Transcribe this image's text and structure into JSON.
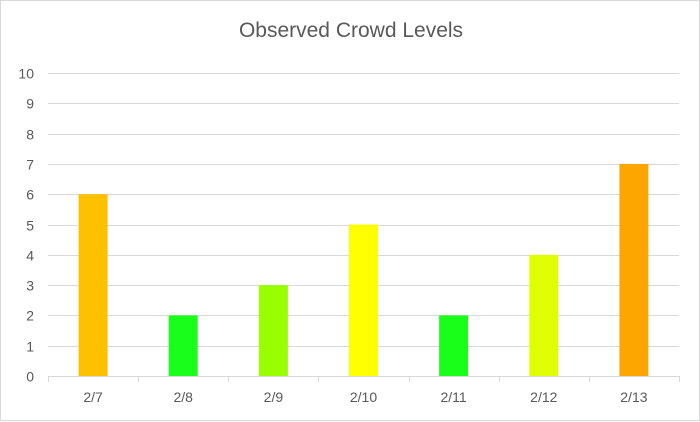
{
  "chart_data": {
    "type": "bar",
    "title": "Observed Crowd Levels",
    "xlabel": "",
    "ylabel": "",
    "categories": [
      "2/7",
      "2/8",
      "2/9",
      "2/10",
      "2/11",
      "2/12",
      "2/13"
    ],
    "values": [
      6,
      2,
      3,
      5,
      2,
      4,
      7
    ],
    "bar_colors": [
      "#ffc000",
      "#1aff1a",
      "#99ff00",
      "#ffff00",
      "#1aff1a",
      "#e0ff00",
      "#ffa500"
    ],
    "ylim": [
      0,
      10
    ],
    "yticks": [
      "0",
      "1",
      "2",
      "3",
      "4",
      "5",
      "6",
      "7",
      "8",
      "9",
      "10"
    ],
    "grid": true,
    "gridline_color": "#d9d9d9",
    "text_color": "#595959"
  }
}
